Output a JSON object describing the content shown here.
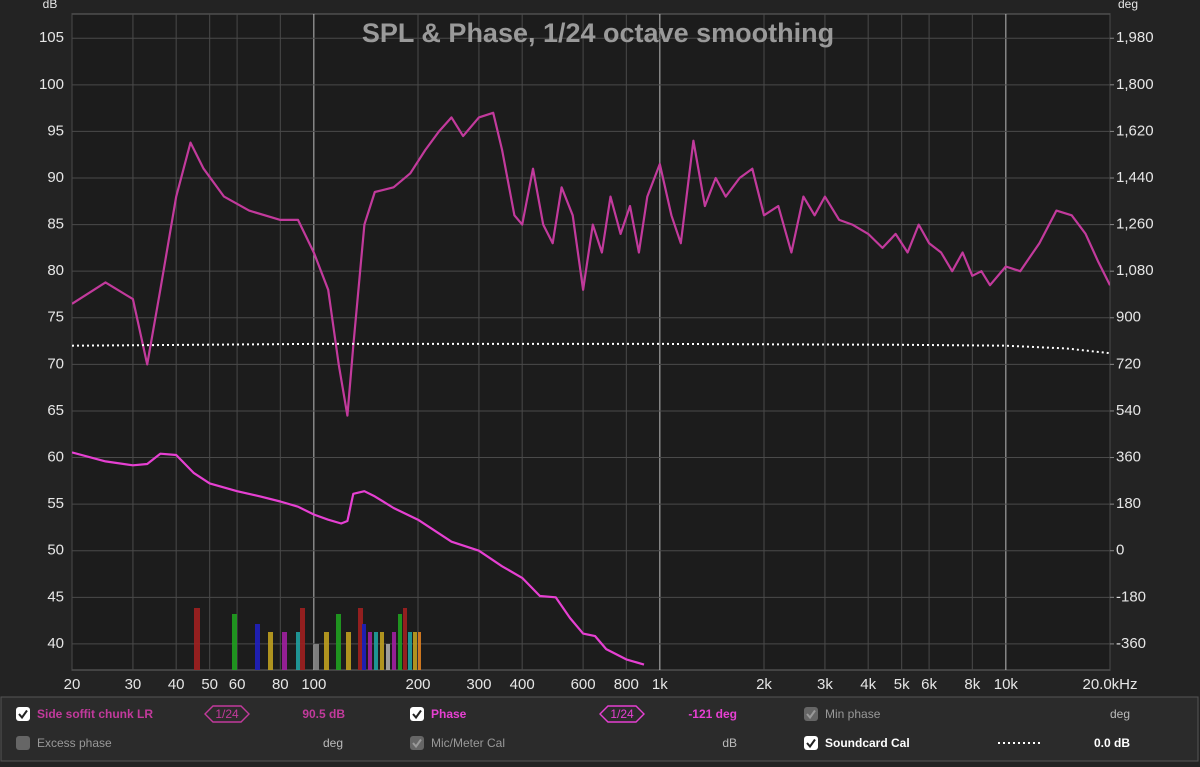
{
  "chart_data": {
    "type": "line",
    "title": "SPL & Phase, 1/24 octave smoothing",
    "y_label": "dB",
    "y2_label": "deg",
    "xscale": "log",
    "grid": true,
    "xlim": [
      20,
      20000
    ],
    "xticks": [
      20,
      30,
      40,
      50,
      60,
      80,
      100,
      200,
      300,
      400,
      600,
      800,
      {
        "value": 1000,
        "label": "1k"
      },
      {
        "value": 2000,
        "label": "2k"
      },
      {
        "value": 3000,
        "label": "3k"
      },
      {
        "value": 4000,
        "label": "4k"
      },
      {
        "value": 5000,
        "label": "5k"
      },
      {
        "value": 6000,
        "label": "6k"
      },
      {
        "value": 8000,
        "label": "8k"
      },
      {
        "value": 10000,
        "label": "10k"
      },
      {
        "value": 20000,
        "label": "20.0kHz"
      }
    ],
    "ylim": [
      37.2,
      107.6
    ],
    "yticks": [
      40,
      45,
      50,
      55,
      60,
      65,
      70,
      75,
      80,
      85,
      90,
      95,
      100,
      105
    ],
    "y2lim": [
      -460.8,
      2073.6
    ],
    "y2ticks": [
      -360,
      -180,
      0,
      180,
      360,
      540,
      720,
      900,
      {
        "value": 1080,
        "label": "1,080"
      },
      {
        "value": 1260,
        "label": "1,260"
      },
      {
        "value": 1440,
        "label": "1,440"
      },
      {
        "value": 1620,
        "label": "1,620"
      },
      {
        "value": 1800,
        "label": "1,800"
      },
      {
        "value": 1980,
        "label": "1,980"
      }
    ],
    "series": [
      {
        "name": "Side soffit chunk LR",
        "color": "#c23a9c",
        "smoothing_badge": "1/24",
        "readout": "90.5 dB",
        "x": [
          20,
          25,
          30,
          33,
          36,
          40,
          44,
          48,
          55,
          65,
          80,
          90,
          100,
          110,
          118,
          125,
          130,
          140,
          150,
          170,
          190,
          210,
          230,
          250,
          270,
          300,
          330,
          350,
          380,
          400,
          430,
          460,
          490,
          520,
          560,
          600,
          640,
          680,
          720,
          770,
          820,
          870,
          920,
          1000,
          1080,
          1150,
          1250,
          1350,
          1450,
          1550,
          1700,
          1850,
          2000,
          2200,
          2400,
          2600,
          2800,
          3000,
          3300,
          3600,
          4000,
          4400,
          4800,
          5200,
          5600,
          6000,
          6500,
          7000,
          7500,
          8000,
          8500,
          9000,
          10000,
          11000,
          12500,
          14000,
          15500,
          17000,
          18500,
          20000
        ],
        "values": [
          76.5,
          78.8,
          77,
          70,
          78,
          88,
          93.8,
          91,
          88,
          86.5,
          85.5,
          85.5,
          82,
          78,
          70,
          64.5,
          72,
          85,
          88.5,
          89,
          90.5,
          93,
          95,
          96.5,
          94.5,
          96.5,
          97,
          93,
          86,
          85,
          91,
          85,
          83,
          89,
          86,
          78,
          85,
          82,
          88,
          84,
          87,
          82,
          88,
          91.5,
          86,
          83,
          94,
          87,
          90,
          88,
          90,
          91,
          86,
          87,
          82,
          88,
          86,
          88,
          85.5,
          85,
          84,
          82.5,
          84,
          82,
          85,
          83,
          82,
          80,
          82,
          79.5,
          80,
          78.5,
          80.5,
          80,
          83,
          86.5,
          86,
          84,
          81,
          78.5
        ]
      },
      {
        "name": "Phase",
        "color": "#e640d2",
        "axis": "y2",
        "smoothing_badge": "1/24",
        "readout": "-121 deg",
        "x": [
          20,
          25,
          30,
          33,
          36,
          40,
          45,
          50,
          60,
          70,
          80,
          90,
          100,
          110,
          120,
          125,
          130,
          140,
          150,
          170,
          200,
          250,
          300,
          350,
          400,
          450,
          500,
          550,
          600,
          650,
          700,
          800,
          900
        ],
        "values": [
          380,
          345,
          330,
          335,
          375,
          370,
          300,
          260,
          230,
          210,
          190,
          170,
          140,
          120,
          105,
          115,
          220,
          230,
          210,
          165,
          120,
          35,
          0,
          -60,
          -105,
          -175,
          -180,
          -260,
          -320,
          -330,
          -380,
          -420,
          -440
        ]
      },
      {
        "name": "Soundcard Cal",
        "color": "#ffffff",
        "dashed": true,
        "readout": "0.0 dB",
        "x": [
          20,
          100,
          1000,
          5000,
          10000,
          15000,
          20000
        ],
        "values": [
          72,
          72.2,
          72.2,
          72.1,
          72,
          71.7,
          71.2
        ]
      }
    ],
    "panel": [
      {
        "label": "Min phase",
        "unit": "deg"
      },
      {
        "label": "Excess phase",
        "unit": "deg"
      },
      {
        "label": "Mic/Meter Cal",
        "unit": "dB"
      }
    ]
  }
}
